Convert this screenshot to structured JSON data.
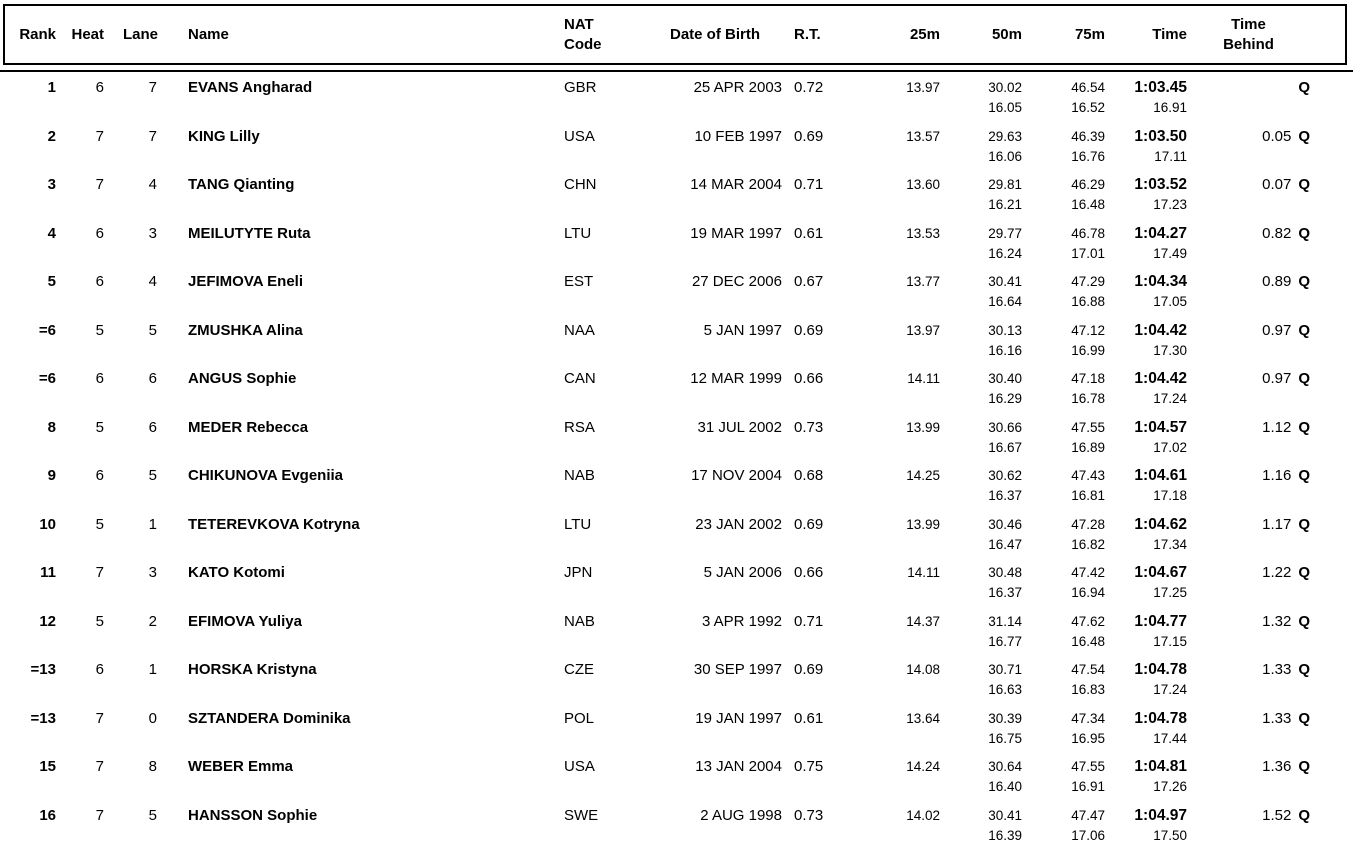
{
  "table": {
    "headers": {
      "rank": "Rank",
      "heat": "Heat",
      "lane": "Lane",
      "name": "Name",
      "nat_line1": "NAT",
      "nat_line2": "Code",
      "dob": "Date of Birth",
      "rt": "R.T.",
      "m25": "25m",
      "m50": "50m",
      "m75": "75m",
      "time": "Time",
      "behind_line1": "Time",
      "behind_line2": "Behind"
    },
    "rows": [
      {
        "rank": "1",
        "heat": "6",
        "lane": "7",
        "name": "EVANS Angharad",
        "nat": "GBR",
        "dob": "25 APR 2003",
        "rt": "0.72",
        "m25": "13.97",
        "m50": "30.02",
        "m75": "46.54",
        "time": "1:03.45",
        "behind": "",
        "q": "Q",
        "s50": "16.05",
        "s75": "16.52",
        "stime": "16.91"
      },
      {
        "rank": "2",
        "heat": "7",
        "lane": "7",
        "name": "KING Lilly",
        "nat": "USA",
        "dob": "10 FEB 1997",
        "rt": "0.69",
        "m25": "13.57",
        "m50": "29.63",
        "m75": "46.39",
        "time": "1:03.50",
        "behind": "0.05",
        "q": "Q",
        "s50": "16.06",
        "s75": "16.76",
        "stime": "17.11"
      },
      {
        "rank": "3",
        "heat": "7",
        "lane": "4",
        "name": "TANG Qianting",
        "nat": "CHN",
        "dob": "14 MAR 2004",
        "rt": "0.71",
        "m25": "13.60",
        "m50": "29.81",
        "m75": "46.29",
        "time": "1:03.52",
        "behind": "0.07",
        "q": "Q",
        "s50": "16.21",
        "s75": "16.48",
        "stime": "17.23"
      },
      {
        "rank": "4",
        "heat": "6",
        "lane": "3",
        "name": "MEILUTYTE Ruta",
        "nat": "LTU",
        "dob": "19 MAR 1997",
        "rt": "0.61",
        "m25": "13.53",
        "m50": "29.77",
        "m75": "46.78",
        "time": "1:04.27",
        "behind": "0.82",
        "q": "Q",
        "s50": "16.24",
        "s75": "17.01",
        "stime": "17.49"
      },
      {
        "rank": "5",
        "heat": "6",
        "lane": "4",
        "name": "JEFIMOVA Eneli",
        "nat": "EST",
        "dob": "27 DEC 2006",
        "rt": "0.67",
        "m25": "13.77",
        "m50": "30.41",
        "m75": "47.29",
        "time": "1:04.34",
        "behind": "0.89",
        "q": "Q",
        "s50": "16.64",
        "s75": "16.88",
        "stime": "17.05"
      },
      {
        "rank": "=6",
        "heat": "5",
        "lane": "5",
        "name": "ZMUSHKA Alina",
        "nat": "NAA",
        "dob": "5 JAN 1997",
        "rt": "0.69",
        "m25": "13.97",
        "m50": "30.13",
        "m75": "47.12",
        "time": "1:04.42",
        "behind": "0.97",
        "q": "Q",
        "s50": "16.16",
        "s75": "16.99",
        "stime": "17.30"
      },
      {
        "rank": "=6",
        "heat": "6",
        "lane": "6",
        "name": "ANGUS Sophie",
        "nat": "CAN",
        "dob": "12 MAR 1999",
        "rt": "0.66",
        "m25": "14.11",
        "m50": "30.40",
        "m75": "47.18",
        "time": "1:04.42",
        "behind": "0.97",
        "q": "Q",
        "s50": "16.29",
        "s75": "16.78",
        "stime": "17.24"
      },
      {
        "rank": "8",
        "heat": "5",
        "lane": "6",
        "name": "MEDER Rebecca",
        "nat": "RSA",
        "dob": "31 JUL 2002",
        "rt": "0.73",
        "m25": "13.99",
        "m50": "30.66",
        "m75": "47.55",
        "time": "1:04.57",
        "behind": "1.12",
        "q": "Q",
        "s50": "16.67",
        "s75": "16.89",
        "stime": "17.02"
      },
      {
        "rank": "9",
        "heat": "6",
        "lane": "5",
        "name": "CHIKUNOVA Evgeniia",
        "nat": "NAB",
        "dob": "17 NOV 2004",
        "rt": "0.68",
        "m25": "14.25",
        "m50": "30.62",
        "m75": "47.43",
        "time": "1:04.61",
        "behind": "1.16",
        "q": "Q",
        "s50": "16.37",
        "s75": "16.81",
        "stime": "17.18"
      },
      {
        "rank": "10",
        "heat": "5",
        "lane": "1",
        "name": "TETEREVKOVA Kotryna",
        "nat": "LTU",
        "dob": "23 JAN 2002",
        "rt": "0.69",
        "m25": "13.99",
        "m50": "30.46",
        "m75": "47.28",
        "time": "1:04.62",
        "behind": "1.17",
        "q": "Q",
        "s50": "16.47",
        "s75": "16.82",
        "stime": "17.34"
      },
      {
        "rank": "11",
        "heat": "7",
        "lane": "3",
        "name": "KATO Kotomi",
        "nat": "JPN",
        "dob": "5 JAN 2006",
        "rt": "0.66",
        "m25": "14.11",
        "m50": "30.48",
        "m75": "47.42",
        "time": "1:04.67",
        "behind": "1.22",
        "q": "Q",
        "s50": "16.37",
        "s75": "16.94",
        "stime": "17.25"
      },
      {
        "rank": "12",
        "heat": "5",
        "lane": "2",
        "name": "EFIMOVA Yuliya",
        "nat": "NAB",
        "dob": "3 APR 1992",
        "rt": "0.71",
        "m25": "14.37",
        "m50": "31.14",
        "m75": "47.62",
        "time": "1:04.77",
        "behind": "1.32",
        "q": "Q",
        "s50": "16.77",
        "s75": "16.48",
        "stime": "17.15"
      },
      {
        "rank": "=13",
        "heat": "6",
        "lane": "1",
        "name": "HORSKA Kristyna",
        "nat": "CZE",
        "dob": "30 SEP 1997",
        "rt": "0.69",
        "m25": "14.08",
        "m50": "30.71",
        "m75": "47.54",
        "time": "1:04.78",
        "behind": "1.33",
        "q": "Q",
        "s50": "16.63",
        "s75": "16.83",
        "stime": "17.24"
      },
      {
        "rank": "=13",
        "heat": "7",
        "lane": "0",
        "name": "SZTANDERA Dominika",
        "nat": "POL",
        "dob": "19 JAN 1997",
        "rt": "0.61",
        "m25": "13.64",
        "m50": "30.39",
        "m75": "47.34",
        "time": "1:04.78",
        "behind": "1.33",
        "q": "Q",
        "s50": "16.75",
        "s75": "16.95",
        "stime": "17.44"
      },
      {
        "rank": "15",
        "heat": "7",
        "lane": "8",
        "name": "WEBER Emma",
        "nat": "USA",
        "dob": "13 JAN 2004",
        "rt": "0.75",
        "m25": "14.24",
        "m50": "30.64",
        "m75": "47.55",
        "time": "1:04.81",
        "behind": "1.36",
        "q": "Q",
        "s50": "16.40",
        "s75": "16.91",
        "stime": "17.26"
      },
      {
        "rank": "16",
        "heat": "7",
        "lane": "5",
        "name": "HANSSON Sophie",
        "nat": "SWE",
        "dob": "2 AUG 1998",
        "rt": "0.73",
        "m25": "14.02",
        "m50": "30.41",
        "m75": "47.47",
        "time": "1:04.97",
        "behind": "1.52",
        "q": "Q",
        "s50": "16.39",
        "s75": "17.06",
        "stime": "17.50"
      }
    ]
  }
}
